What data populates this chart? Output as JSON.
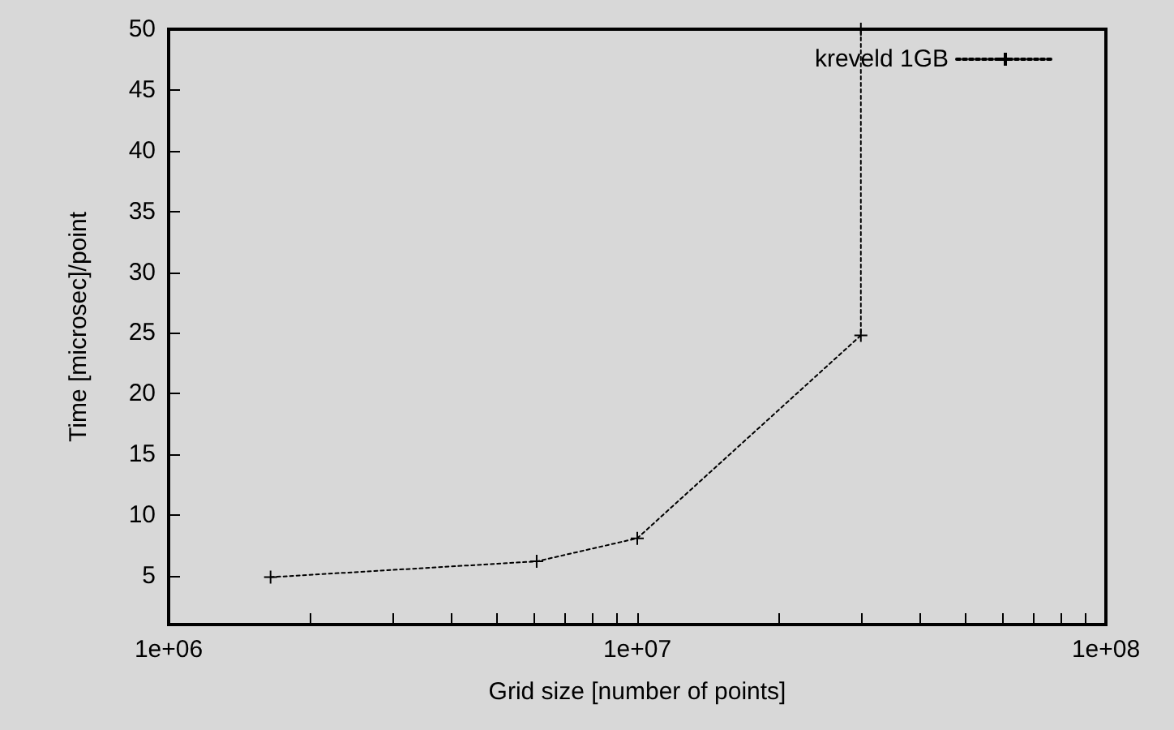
{
  "chart_data": {
    "type": "line",
    "xlabel": "Grid size [number of points]",
    "ylabel": "Time [microsec]/point",
    "series": [
      {
        "name": "kreveld 1GB",
        "color": "#000000",
        "x": [
          1650000,
          6100000,
          10000000,
          30000000,
          30000000
        ],
        "values": [
          4.9,
          6.2,
          8.1,
          24.8,
          50
        ]
      }
    ],
    "log": "x",
    "xlim": [
      1000000,
      100000000
    ],
    "xticks": [
      {
        "value": 1000000,
        "label": "1e+06"
      },
      {
        "value": 2000000,
        "label": null
      },
      {
        "value": 3000000,
        "label": null
      },
      {
        "value": 4000000,
        "label": null
      },
      {
        "value": 5000000,
        "label": null
      },
      {
        "value": 6000000,
        "label": null
      },
      {
        "value": 7000000,
        "label": null
      },
      {
        "value": 8000000,
        "label": null
      },
      {
        "value": 9000000,
        "label": null
      },
      {
        "value": 10000000,
        "label": "1e+07"
      },
      {
        "value": 20000000,
        "label": null
      },
      {
        "value": 30000000,
        "label": null
      },
      {
        "value": 40000000,
        "label": null
      },
      {
        "value": 50000000,
        "label": null
      },
      {
        "value": 60000000,
        "label": null
      },
      {
        "value": 70000000,
        "label": null
      },
      {
        "value": 80000000,
        "label": null
      },
      {
        "value": 90000000,
        "label": null
      },
      {
        "value": 100000000,
        "label": "1e+08"
      }
    ],
    "ylim": [
      1,
      50
    ],
    "yticks": [
      5,
      10,
      15,
      20,
      25,
      30,
      35,
      40,
      45,
      50
    ],
    "grid": false,
    "legend": "top right",
    "marker": "cross",
    "line_style": "dotted"
  }
}
